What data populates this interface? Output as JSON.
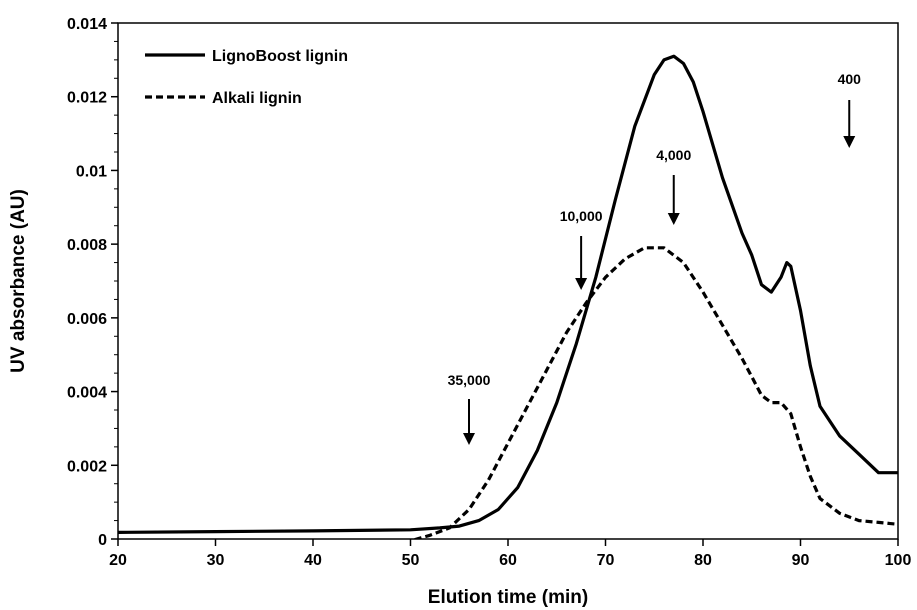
{
  "chart_data": {
    "type": "line",
    "title": "",
    "xlabel": "Elution time (min)",
    "ylabel": "UV absorbance (AU)",
    "xlim": [
      20,
      100
    ],
    "ylim": [
      0,
      0.014
    ],
    "x_ticks": [
      20,
      30,
      40,
      50,
      60,
      70,
      80,
      90,
      100
    ],
    "y_ticks": [
      0,
      0.002,
      0.004,
      0.006,
      0.008,
      0.01,
      0.012,
      0.014
    ],
    "x_tick_labels": [
      "20",
      "30",
      "40",
      "50",
      "60",
      "70",
      "80",
      "90",
      "100"
    ],
    "y_tick_labels": [
      "0",
      "0.002",
      "0.004",
      "0.006",
      "0.008",
      "0.01",
      "0.012",
      "0.014"
    ],
    "grid": false,
    "legend_position": "top-left",
    "series": [
      {
        "name": "LignoBoost lignin",
        "style": "solid",
        "color": "#000000",
        "x": [
          20,
          30,
          40,
          50,
          53,
          55,
          57,
          59,
          61,
          63,
          65,
          67,
          69,
          71,
          73,
          75,
          76,
          77,
          78,
          79,
          80,
          82,
          84,
          85,
          86,
          87,
          88,
          88.6,
          89,
          90,
          91,
          92,
          94,
          96,
          98,
          99,
          100
        ],
        "y": [
          0.00018,
          0.0002,
          0.00022,
          0.00025,
          0.0003,
          0.00035,
          0.0005,
          0.0008,
          0.0014,
          0.0024,
          0.0037,
          0.0053,
          0.0071,
          0.0092,
          0.0112,
          0.0126,
          0.013,
          0.0131,
          0.0129,
          0.0124,
          0.0116,
          0.0098,
          0.0083,
          0.0077,
          0.0069,
          0.0067,
          0.0071,
          0.0075,
          0.0074,
          0.0062,
          0.0047,
          0.0036,
          0.0028,
          0.0023,
          0.0018,
          0.0018,
          0.0018
        ]
      },
      {
        "name": "Alkali lignin",
        "style": "dashed",
        "color": "#000000",
        "x": [
          20,
          25,
          30,
          40,
          48,
          50,
          52,
          54,
          56,
          58,
          60,
          62,
          64,
          66,
          68,
          70,
          72,
          74,
          75,
          76,
          78,
          80,
          82,
          84,
          85,
          86,
          87,
          88,
          89,
          90,
          91,
          92,
          94,
          96,
          98,
          100
        ],
        "y": [
          -5e-05,
          -5e-05,
          -0.0001,
          -0.0001,
          -0.0001,
          -5e-05,
          0.0001,
          0.0003,
          0.0008,
          0.0016,
          0.0026,
          0.0036,
          0.0046,
          0.0056,
          0.0064,
          0.0071,
          0.0076,
          0.0079,
          0.0079,
          0.0079,
          0.0075,
          0.0067,
          0.0058,
          0.0049,
          0.0044,
          0.0039,
          0.0037,
          0.0037,
          0.0034,
          0.0025,
          0.0017,
          0.0011,
          0.0007,
          0.0005,
          0.00045,
          0.0004
        ]
      }
    ],
    "annotations": [
      {
        "text": "35,000",
        "x": 56
      },
      {
        "text": "10,000",
        "x": 67.5
      },
      {
        "text": "4,000",
        "x": 77
      },
      {
        "text": "400",
        "x": 95
      }
    ]
  }
}
